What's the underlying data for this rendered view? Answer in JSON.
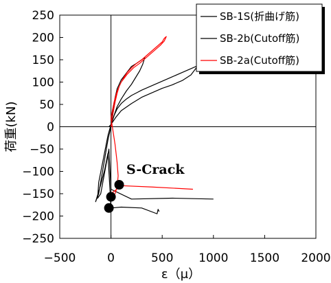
{
  "chart_data": {
    "type": "line",
    "title": "",
    "xlabel": "ε（μ）",
    "ylabel": "荷重(kN)",
    "xlim": [
      -500,
      2000
    ],
    "ylim": [
      -250,
      250
    ],
    "x_ticks": [
      -500,
      0,
      500,
      1000,
      1500,
      2000
    ],
    "y_ticks": [
      250,
      200,
      150,
      100,
      50,
      0,
      -50,
      -100,
      -150,
      -200,
      -250
    ],
    "grid": false,
    "legend_position": "top-right",
    "series": [
      {
        "name": "SB-1S(折曲げ筋)",
        "color": "#000000",
        "x": [
          -5,
          10,
          30,
          60,
          100,
          150,
          200,
          250,
          300,
          400,
          500,
          600,
          700,
          800,
          860,
          880,
          860,
          820,
          780,
          700,
          600,
          500,
          400,
          300,
          200,
          100,
          50,
          0,
          -20
        ],
        "y": [
          -2,
          10,
          25,
          40,
          52,
          62,
          70,
          76,
          82,
          92,
          102,
          112,
          122,
          132,
          138,
          150,
          140,
          128,
          116,
          104,
          94,
          86,
          76,
          66,
          52,
          36,
          22,
          5,
          0
        ]
      },
      {
        "name": "SB-2b(Cutoff筋)",
        "color": "#000000",
        "x": [
          0,
          20,
          40,
          60,
          100,
          150,
          200,
          250,
          300,
          330,
          310,
          280,
          240,
          200,
          150,
          100,
          60,
          30,
          0,
          -30,
          -60,
          -90,
          -120,
          -130,
          -100,
          -80,
          -60,
          -40,
          -20,
          0,
          200,
          600,
          1000
        ],
        "y": [
          0,
          40,
          65,
          85,
          105,
          120,
          135,
          142,
          150,
          155,
          140,
          125,
          110,
          95,
          80,
          62,
          45,
          25,
          5,
          -20,
          -55,
          -90,
          -125,
          -160,
          -150,
          -125,
          -100,
          -75,
          -50,
          -140,
          -162,
          -160,
          -162
        ]
      },
      {
        "name": "SB-2a(Cutoff筋)",
        "color": "#ff0000",
        "x": [
          0,
          20,
          40,
          60,
          80,
          100,
          130,
          160,
          200,
          250,
          300,
          350,
          400,
          450,
          500,
          520,
          540,
          520,
          480,
          430,
          380,
          330,
          280,
          220,
          160,
          100,
          60,
          30,
          0,
          20,
          40,
          60,
          70,
          60,
          40,
          20,
          0,
          100,
          400,
          800
        ],
        "y": [
          0,
          30,
          55,
          75,
          90,
          100,
          112,
          122,
          132,
          142,
          150,
          160,
          170,
          180,
          190,
          198,
          202,
          192,
          182,
          172,
          162,
          152,
          142,
          132,
          118,
          100,
          80,
          55,
          20,
          -10,
          -40,
          -80,
          -110,
          -135,
          -150,
          -155,
          -150,
          -132,
          -135,
          -140
        ]
      }
    ],
    "unnamed_series": [
      {
        "color": "#000000",
        "x": [
          0,
          -30,
          -60,
          -90,
          -120,
          -150,
          -100,
          -60,
          -30,
          0,
          100,
          300,
          450,
          460,
          470
        ],
        "y": [
          0,
          -30,
          -70,
          -110,
          -150,
          -168,
          -130,
          -95,
          -60,
          -182,
          -180,
          -182,
          -195,
          -185,
          -190
        ]
      }
    ],
    "markers": [
      {
        "x": -20,
        "y": -182,
        "color": "#000000"
      },
      {
        "x": 0,
        "y": -157,
        "color": "#000000"
      },
      {
        "x": 80,
        "y": -130,
        "color": "#000000"
      }
    ],
    "annotations": [
      {
        "text": "S-Crack",
        "x": 150,
        "y": -105
      }
    ]
  }
}
